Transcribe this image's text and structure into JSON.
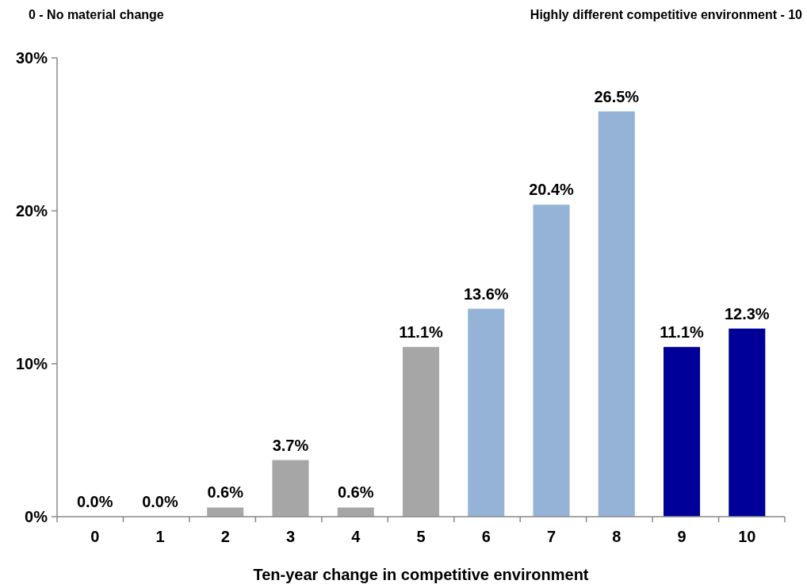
{
  "chart_data": {
    "type": "bar",
    "xlabel": "Ten-year change in competitive environment",
    "annotations": [
      "0 - No material change",
      "Highly different competitive environment - 10"
    ],
    "categories": [
      "0",
      "1",
      "2",
      "3",
      "4",
      "5",
      "6",
      "7",
      "8",
      "9",
      "10"
    ],
    "values": [
      0,
      0,
      0.6,
      3.7,
      0.6,
      11.1,
      13.6,
      20.4,
      26.5,
      11.1,
      12.3
    ],
    "colors": [
      "#a6a6a6",
      "#a6a6a6",
      "#a6a6a6",
      "#a6a6a6",
      "#a6a6a6",
      "#a6a6a6",
      "#95b3d7",
      "#95b3d7",
      "#95b3d7",
      "#000099",
      "#000099"
    ],
    "value_labels": [
      "0.0%",
      "0.0%",
      "0.6%",
      "3.7%",
      "0.6%",
      "11.1%",
      "13.6%",
      "20.4%",
      "26.5%",
      "11.1%",
      "12.3%"
    ],
    "ylim": [
      0,
      30
    ],
    "yticks": [
      {
        "value": 0,
        "label": "0%"
      },
      {
        "value": 10,
        "label": "10%"
      },
      {
        "value": 20,
        "label": "20%"
      },
      {
        "value": 30,
        "label": "30%"
      }
    ],
    "grid": false
  }
}
